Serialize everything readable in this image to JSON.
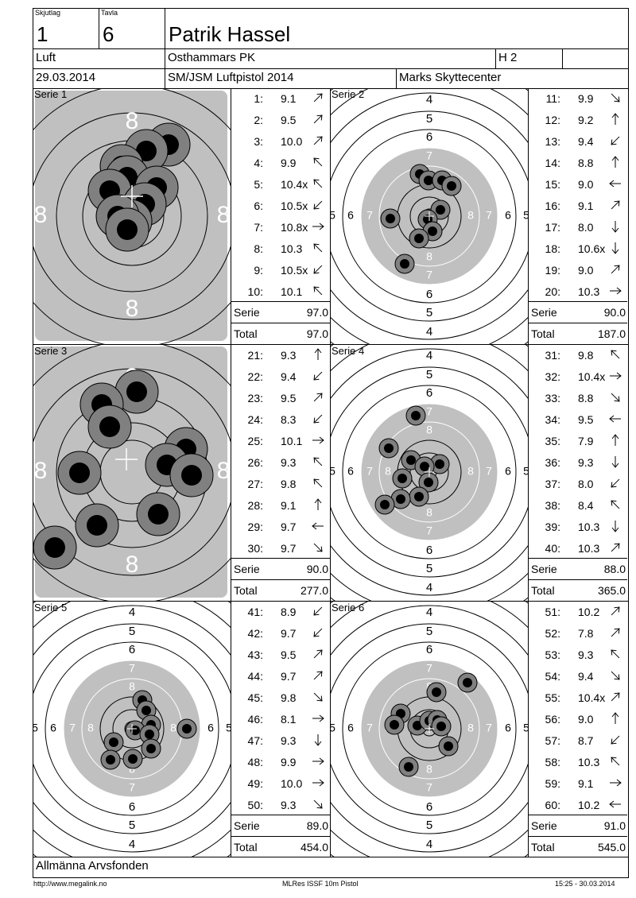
{
  "header": {
    "skjutlag_label": "Skjutlag",
    "skjutlag_value": "1",
    "tavla_label": "Tavla",
    "tavla_value": "6",
    "shooter_name": "Patrik Hassel",
    "discipline": "Luft",
    "club": "Osthammars PK",
    "class": "H 2",
    "date": "29.03.2014",
    "competition": "SM/JSM Luftpistol 2014",
    "venue": "Marks Skyttecenter"
  },
  "series": [
    {
      "label": "Serie 1",
      "serie_label": "Serie",
      "serie_value": "97.0",
      "total_label": "Total",
      "total_value": "97.0",
      "shots": [
        [
          "1:",
          "9.1",
          "ne"
        ],
        [
          "2:",
          "9.5",
          "ne"
        ],
        [
          "3:",
          "10.0",
          "ne"
        ],
        [
          "4:",
          "9.9",
          "nw"
        ],
        [
          "5:",
          "10.4x",
          "nw"
        ],
        [
          "6:",
          "10.5x",
          "sw"
        ],
        [
          "7:",
          "10.8x",
          "e"
        ],
        [
          "8:",
          "10.3",
          "nw"
        ],
        [
          "9:",
          "10.5x",
          "sw"
        ],
        [
          "10:",
          "10.1",
          "nw"
        ]
      ]
    },
    {
      "label": "Serie 2",
      "serie_label": "Serie",
      "serie_value": "90.0",
      "total_label": "Total",
      "total_value": "187.0",
      "shots": [
        [
          "11:",
          "9.9",
          "se"
        ],
        [
          "12:",
          "9.2",
          "n"
        ],
        [
          "13:",
          "9.4",
          "sw"
        ],
        [
          "14:",
          "8.8",
          "n"
        ],
        [
          "15:",
          "9.0",
          "w"
        ],
        [
          "16:",
          "9.1",
          "ne"
        ],
        [
          "17:",
          "8.0",
          "s"
        ],
        [
          "18:",
          "10.6x",
          "s"
        ],
        [
          "19:",
          "9.0",
          "ne"
        ],
        [
          "20:",
          "10.3",
          "e"
        ]
      ]
    },
    {
      "label": "Serie 3",
      "serie_label": "Serie",
      "serie_value": "90.0",
      "total_label": "Total",
      "total_value": "277.0",
      "shots": [
        [
          "21:",
          "9.3",
          "n"
        ],
        [
          "22:",
          "9.4",
          "sw"
        ],
        [
          "23:",
          "9.5",
          "ne"
        ],
        [
          "24:",
          "8.3",
          "sw"
        ],
        [
          "25:",
          "10.1",
          "e"
        ],
        [
          "26:",
          "9.3",
          "nw"
        ],
        [
          "27:",
          "9.8",
          "nw"
        ],
        [
          "28:",
          "9.1",
          "n"
        ],
        [
          "29:",
          "9.7",
          "w"
        ],
        [
          "30:",
          "9.7",
          "se"
        ]
      ]
    },
    {
      "label": "Serie 4",
      "serie_label": "Serie",
      "serie_value": "88.0",
      "total_label": "Total",
      "total_value": "365.0",
      "shots": [
        [
          "31:",
          "9.8",
          "nw"
        ],
        [
          "32:",
          "10.4x",
          "e"
        ],
        [
          "33:",
          "8.8",
          "se"
        ],
        [
          "34:",
          "9.5",
          "w"
        ],
        [
          "35:",
          "7.9",
          "n"
        ],
        [
          "36:",
          "9.3",
          "s"
        ],
        [
          "37:",
          "8.0",
          "sw"
        ],
        [
          "38:",
          "8.4",
          "nw"
        ],
        [
          "39:",
          "10.3",
          "s"
        ],
        [
          "40:",
          "10.3",
          "ne"
        ]
      ]
    },
    {
      "label": "Serie 5",
      "serie_label": "Serie",
      "serie_value": "89.0",
      "total_label": "Total",
      "total_value": "454.0",
      "shots": [
        [
          "41:",
          "8.9",
          "sw"
        ],
        [
          "42:",
          "9.7",
          "sw"
        ],
        [
          "43:",
          "9.5",
          "ne"
        ],
        [
          "44:",
          "9.7",
          "ne"
        ],
        [
          "45:",
          "9.8",
          "se"
        ],
        [
          "46:",
          "8.1",
          "e"
        ],
        [
          "47:",
          "9.3",
          "s"
        ],
        [
          "48:",
          "9.9",
          "e"
        ],
        [
          "49:",
          "10.0",
          "e"
        ],
        [
          "50:",
          "9.3",
          "se"
        ]
      ]
    },
    {
      "label": "Serie 6",
      "serie_label": "Serie",
      "serie_value": "91.0",
      "total_label": "Total",
      "total_value": "545.0",
      "shots": [
        [
          "51:",
          "10.2",
          "ne"
        ],
        [
          "52:",
          "7.8",
          "ne"
        ],
        [
          "53:",
          "9.3",
          "nw"
        ],
        [
          "54:",
          "9.4",
          "se"
        ],
        [
          "55:",
          "10.4x",
          "ne"
        ],
        [
          "56:",
          "9.0",
          "n"
        ],
        [
          "57:",
          "8.7",
          "sw"
        ],
        [
          "58:",
          "10.3",
          "nw"
        ],
        [
          "59:",
          "9.1",
          "e"
        ],
        [
          "60:",
          "10.2",
          "w"
        ]
      ]
    }
  ],
  "sponsor": "Allmänna Arvsfonden",
  "footer": {
    "left": "http://www.megalink.no",
    "center": "MLRes ISSF 10m Pistol",
    "right": "15:25 - 30.03.2014"
  },
  "target_numbers": {
    "zoom_rings": [
      "8",
      "8",
      "8",
      "8",
      "7"
    ],
    "full_rings": [
      "4",
      "5",
      "6",
      "7",
      "8"
    ],
    "side_left": [
      "5",
      "6",
      "7",
      "8"
    ],
    "side_right": [
      "8",
      "7",
      "6",
      "5"
    ]
  },
  "colors": {
    "ring_grey": "#c0c0c0",
    "shot_outer": "#808080",
    "shot_inner": "#000000"
  }
}
